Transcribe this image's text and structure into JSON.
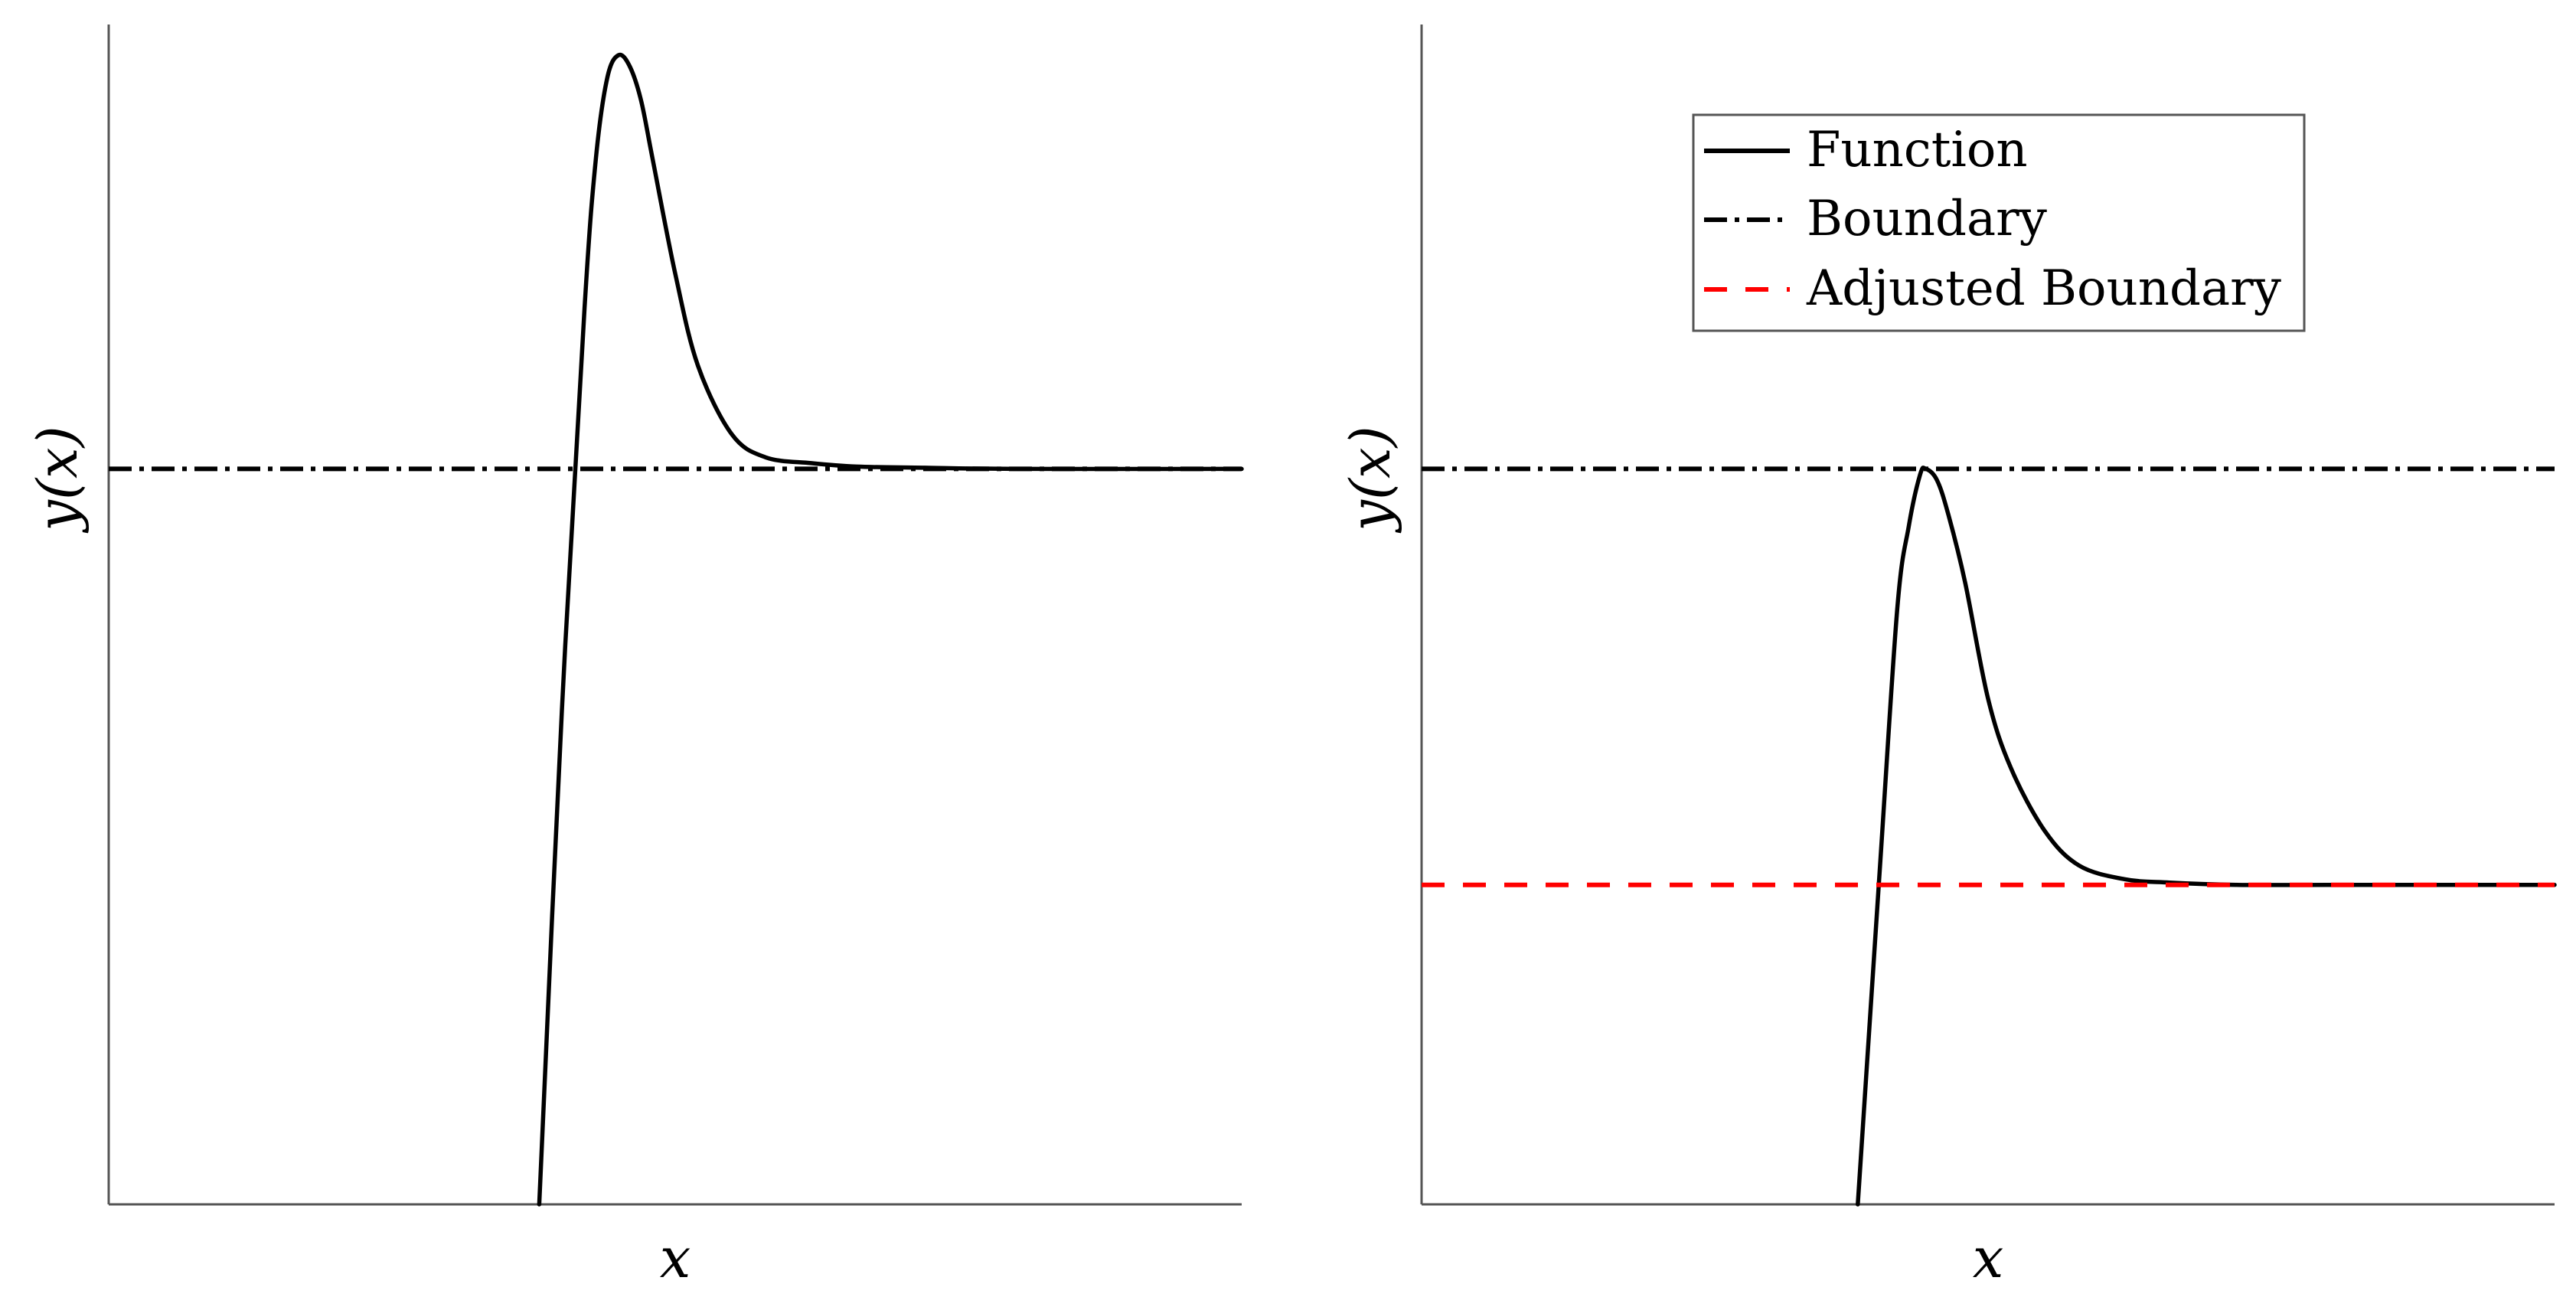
{
  "chart_data": [
    {
      "type": "line",
      "xlabel": "x",
      "ylabel": "y(x)",
      "ylim": [
        0,
        1
      ],
      "xlim": [
        0,
        1
      ],
      "grid": false,
      "series": [
        {
          "name": "Function",
          "style": "solid",
          "color": "#000000",
          "x": [
            0.38,
            0.4,
            0.42,
            0.43,
            0.44,
            0.45,
            0.46,
            0.47,
            0.48,
            0.5,
            0.52,
            0.55,
            0.58,
            0.62,
            0.66,
            0.72,
            0.8,
            1.0
          ],
          "y": [
            0.0,
            0.43,
            0.78,
            0.91,
            0.98,
            1.0,
            0.99,
            0.96,
            0.91,
            0.81,
            0.73,
            0.67,
            0.65,
            0.645,
            0.642,
            0.641,
            0.64,
            0.64
          ]
        },
        {
          "name": "Boundary",
          "style": "dashdot",
          "color": "#000000",
          "x": [
            0,
            1
          ],
          "y": [
            0.64,
            0.64
          ]
        }
      ]
    },
    {
      "type": "line",
      "xlabel": "x",
      "ylabel": "y(x)",
      "ylim": [
        0,
        1
      ],
      "xlim": [
        0,
        1
      ],
      "grid": false,
      "legend": {
        "position": "top-right"
      },
      "series": [
        {
          "name": "Function",
          "style": "solid",
          "color": "#000000",
          "x": [
            0.385,
            0.405,
            0.42,
            0.43,
            0.44,
            0.445,
            0.455,
            0.465,
            0.48,
            0.5,
            0.52,
            0.55,
            0.58,
            0.62,
            0.66,
            0.72,
            0.8,
            1.0
          ],
          "y": [
            0.0,
            0.3,
            0.52,
            0.59,
            0.635,
            0.64,
            0.63,
            0.6,
            0.54,
            0.44,
            0.38,
            0.325,
            0.295,
            0.283,
            0.28,
            0.278,
            0.278,
            0.278
          ]
        },
        {
          "name": "Boundary",
          "style": "dashdot",
          "color": "#000000",
          "x": [
            0,
            1
          ],
          "y": [
            0.64,
            0.64
          ]
        },
        {
          "name": "Adjusted Boundary",
          "style": "dashed",
          "color": "#ff0000",
          "x": [
            0,
            1
          ],
          "y": [
            0.278,
            0.278
          ]
        }
      ]
    }
  ]
}
